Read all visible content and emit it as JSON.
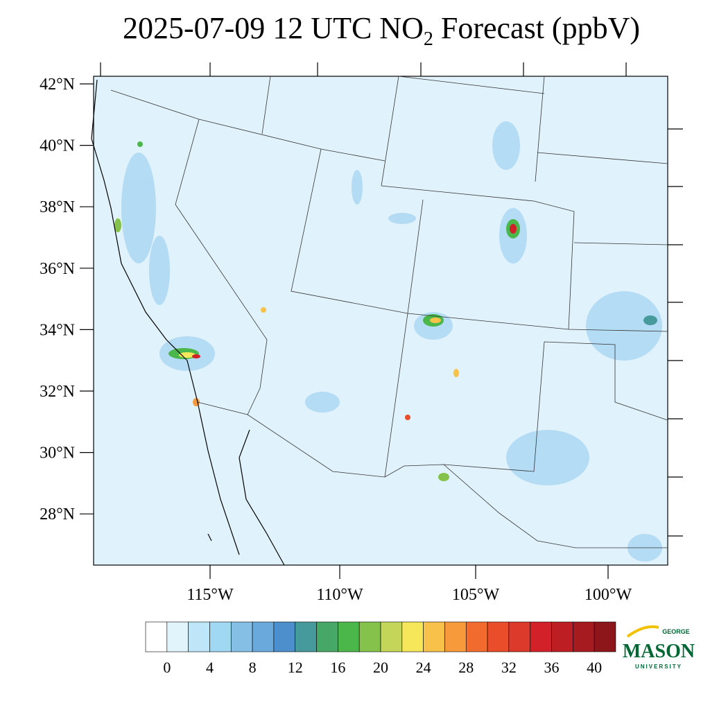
{
  "title": {
    "main": "2025-07-09 12 UTC NO",
    "sub": "2",
    "rest": " Forecast (ppbV)"
  },
  "map": {
    "lat_labels": [
      "42°N",
      "40°N",
      "38°N",
      "36°N",
      "34°N",
      "32°N",
      "30°N",
      "28°N"
    ],
    "lon_labels": [
      "115°W",
      "110°W",
      "105°W",
      "100°W"
    ]
  },
  "colorbar": {
    "colors": [
      "#ffffff",
      "#e1f3fb",
      "#bfe6f8",
      "#a0d8f3",
      "#86bfe5",
      "#6aa9dc",
      "#4d8fcc",
      "#479a9c",
      "#46a767",
      "#4bb74a",
      "#85c24c",
      "#c3d65a",
      "#f6e75a",
      "#f8c14a",
      "#f79a3b",
      "#f26b2e",
      "#e94d2a",
      "#dc3a2a",
      "#d22128",
      "#bc1e24",
      "#a61b20",
      "#8d161b"
    ],
    "ticks": [
      0,
      4,
      8,
      12,
      16,
      20,
      24,
      28,
      32,
      36,
      40
    ]
  },
  "logo": {
    "top": "GEORGE",
    "main": "MASON",
    "bottom": "UNIVERSITY"
  }
}
